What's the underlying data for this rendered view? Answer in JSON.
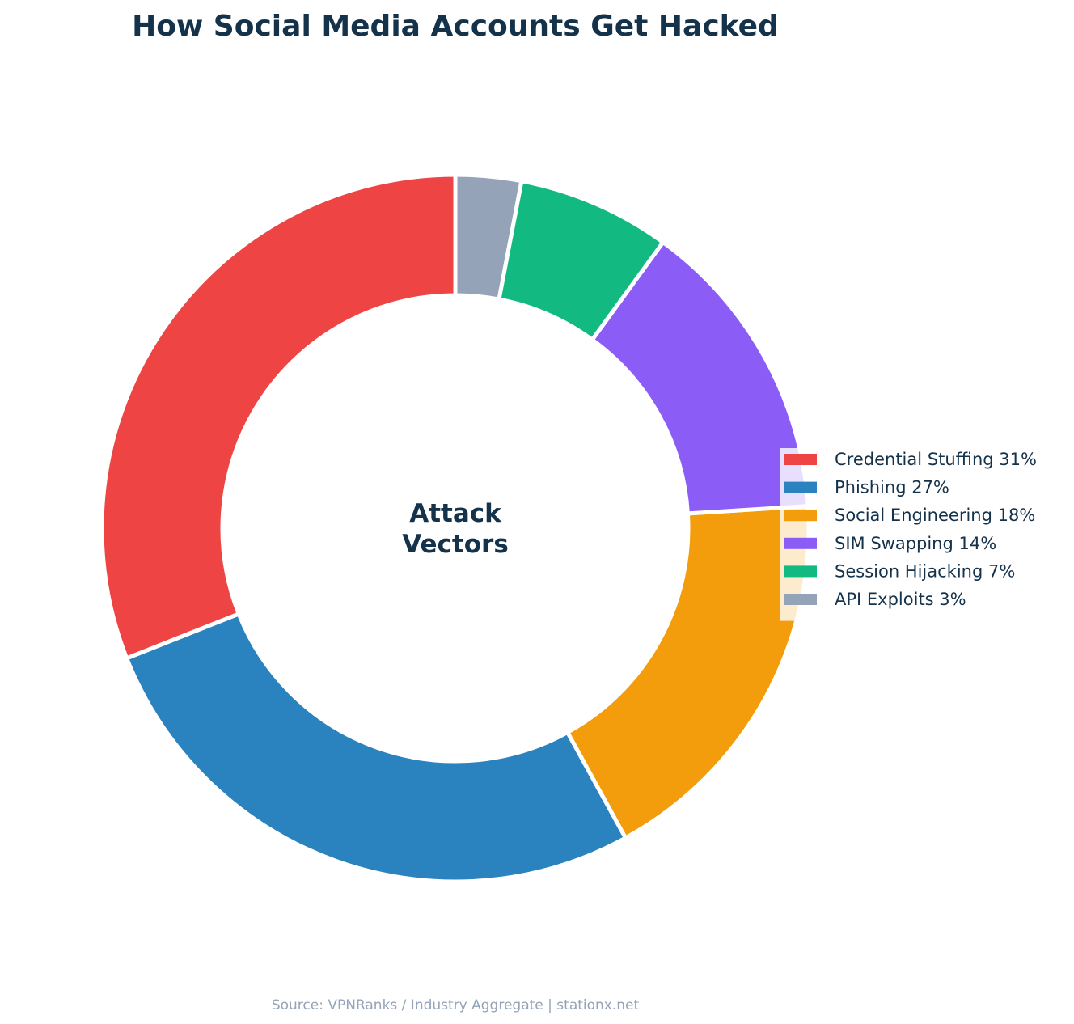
{
  "chart_data": {
    "type": "pie",
    "variant": "donut",
    "title": "How Social Media Accounts Get Hacked",
    "center_label": [
      "Attack",
      "Vectors"
    ],
    "slices": [
      {
        "label": "Credential Stuffing 31%",
        "value": 31,
        "color": "#ef4444"
      },
      {
        "label": "Phishing 27%",
        "value": 27,
        "color": "#2a83bf"
      },
      {
        "label": "Social Engineering 18%",
        "value": 18,
        "color": "#f39c0c"
      },
      {
        "label": "SIM Swapping 14%",
        "value": 14,
        "color": "#8b5cf6"
      },
      {
        "label": "Session Hijacking 7%",
        "value": 7,
        "color": "#12b981"
      },
      {
        "label": "API Exploits 3%",
        "value": 3,
        "color": "#94a3b8"
      }
    ],
    "start_angle_deg": 90,
    "direction": "counterclockwise",
    "legend_position": "right"
  },
  "source": "Source: VPNRanks / Industry Aggregate | stationx.net"
}
